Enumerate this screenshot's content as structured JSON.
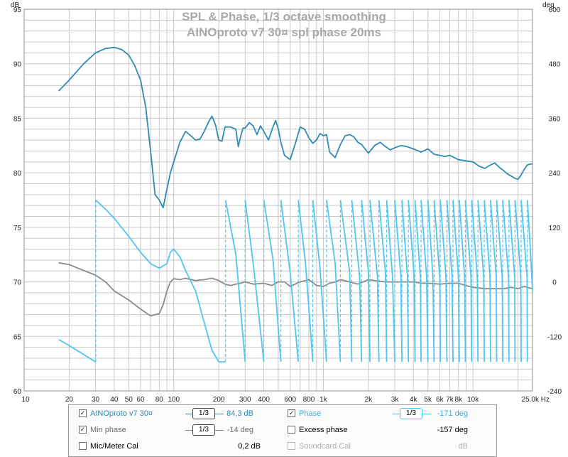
{
  "colors": {
    "spl": "#2f8cb0",
    "phase": "#4ec6f2",
    "min_phase": "#8a8a8a",
    "grid": "#c8c8c8",
    "title": "#a8a8a8",
    "disabled_text": "#b0b0b0"
  },
  "chart_data": {
    "type": "line",
    "title": "SPL & Phase, 1/3 octave smoothing",
    "subtitle": "AINOproto v7 30¤ spl phase 20ms",
    "left_unit": "dB",
    "right_unit": "deg",
    "x_scale": "log",
    "xlim": [
      10,
      25000
    ],
    "ylim_left": [
      60,
      95
    ],
    "ylim_right": [
      -240,
      600
    ],
    "grid": true,
    "x_tick_labels": [
      {
        "v": 10,
        "t": "10"
      },
      {
        "v": 20,
        "t": "20"
      },
      {
        "v": 30,
        "t": "30"
      },
      {
        "v": 40,
        "t": "40"
      },
      {
        "v": 50,
        "t": "50"
      },
      {
        "v": 60,
        "t": "60"
      },
      {
        "v": 80,
        "t": "80"
      },
      {
        "v": 100,
        "t": "100"
      },
      {
        "v": 200,
        "t": "200"
      },
      {
        "v": 300,
        "t": "300"
      },
      {
        "v": 400,
        "t": "400"
      },
      {
        "v": 600,
        "t": "600"
      },
      {
        "v": 800,
        "t": "800"
      },
      {
        "v": 1000,
        "t": "1k"
      },
      {
        "v": 2000,
        "t": "2k"
      },
      {
        "v": 3000,
        "t": "3k"
      },
      {
        "v": 4000,
        "t": "4k"
      },
      {
        "v": 5000,
        "t": "5k"
      },
      {
        "v": 6000,
        "t": "6k"
      },
      {
        "v": 7000,
        "t": "7k"
      },
      {
        "v": 8000,
        "t": "8k"
      },
      {
        "v": 10000,
        "t": "10k"
      },
      {
        "v": 25000,
        "t": "25,0k Hz"
      }
    ],
    "y_left_ticks": [
      "95",
      "90",
      "85",
      "80",
      "75",
      "70",
      "65",
      "60"
    ],
    "y_right_ticks": [
      "600",
      "480",
      "360",
      "240",
      "120",
      "0",
      "-120",
      "-240"
    ],
    "series": [
      {
        "name": "AINOproto v7 30¤",
        "axis": "left",
        "x": [
          17,
          20,
          25,
          30,
          35,
          40,
          45,
          50,
          55,
          60,
          65,
          70,
          75,
          80,
          85,
          90,
          95,
          100,
          110,
          120,
          130,
          140,
          150,
          160,
          170,
          180,
          190,
          200,
          210,
          220,
          240,
          260,
          270,
          280,
          290,
          300,
          320,
          340,
          360,
          380,
          400,
          430,
          460,
          480,
          500,
          520,
          550,
          600,
          650,
          700,
          750,
          800,
          850,
          900,
          950,
          1000,
          1050,
          1100,
          1200,
          1300,
          1400,
          1500,
          1600,
          1700,
          1800,
          2000,
          2200,
          2400,
          2600,
          2800,
          3000,
          3300,
          3600,
          4000,
          4500,
          5000,
          5500,
          6000,
          6500,
          7000,
          8000,
          9000,
          10000,
          11000,
          12000,
          13000,
          14000,
          15000,
          16000,
          17000,
          18000,
          19000,
          20000,
          21000,
          22000,
          23000,
          24000,
          25000
        ],
        "y": [
          87.5,
          88.5,
          90.0,
          91.0,
          91.4,
          91.5,
          91.3,
          90.8,
          89.8,
          88.5,
          86.0,
          82.0,
          78.0,
          77.5,
          76.8,
          78.5,
          80.0,
          81.0,
          82.8,
          83.8,
          83.4,
          83.0,
          83.1,
          83.8,
          84.6,
          85.2,
          84.4,
          83.0,
          82.9,
          84.2,
          84.2,
          84.0,
          82.4,
          83.3,
          84.1,
          84.1,
          84.6,
          84.3,
          83.5,
          84.3,
          83.8,
          83.0,
          84.2,
          84.8,
          84.0,
          82.8,
          81.6,
          81.2,
          82.7,
          84.2,
          84.0,
          83.2,
          82.7,
          83.0,
          83.6,
          83.4,
          83.5,
          81.9,
          81.4,
          82.6,
          83.4,
          83.5,
          83.3,
          82.8,
          82.6,
          81.8,
          82.5,
          82.8,
          82.4,
          82.1,
          82.3,
          82.5,
          82.4,
          82.2,
          81.9,
          82.2,
          81.7,
          81.6,
          81.5,
          81.6,
          81.2,
          81.1,
          81.0,
          80.6,
          80.4,
          80.7,
          80.9,
          80.5,
          80.2,
          79.9,
          79.7,
          79.5,
          79.4,
          79.8,
          80.3,
          80.7,
          80.8,
          80.8
        ]
      },
      {
        "name": "Phase",
        "axis": "right",
        "wrapped": true,
        "x": [
          17,
          20,
          25,
          30,
          30.1,
          35,
          40,
          50,
          60,
          70,
          80,
          90,
          95,
          100,
          110,
          120,
          140,
          160,
          180,
          200,
          221.9,
          222,
          260,
          300,
          300.1,
          340,
          400,
          400.1,
          460,
          520,
          520.1,
          600,
          680,
          680.1,
          760,
          850,
          850.1,
          950,
          1050,
          1050.1,
          1200,
          1300,
          1300.1,
          1500,
          1550,
          1550.1,
          1750,
          1800,
          1800.1,
          2000,
          2050,
          2050.1,
          2300,
          2350,
          2350.1,
          2600,
          2650,
          2650.1,
          2900,
          3000,
          3000.1,
          3300,
          3350,
          3350.1,
          3650,
          3700,
          3700.1,
          4050,
          4100,
          4100.1,
          4450,
          4500,
          4500.1,
          4900,
          5000,
          5000.1,
          5400,
          5500,
          5500.1,
          6000,
          6050,
          6050.1,
          6600,
          6700,
          6700.1,
          7250,
          7350,
          7350.1,
          8000,
          8100,
          8100.1,
          8800,
          8900,
          8900.1,
          9700,
          9800,
          9800.1,
          10700,
          10800,
          10800.1,
          11800,
          11900,
          11900.1,
          13000,
          13100,
          13100.1,
          14300,
          14400,
          14400.1,
          15700,
          15800,
          15800.1,
          17300,
          17400,
          17400.1,
          19000,
          19100,
          19100.1,
          20900,
          21000,
          21000.1,
          23000,
          23100,
          23100.1,
          24300,
          25000
        ],
        "y": [
          -127,
          -140,
          -160,
          -176,
          180,
          160,
          140,
          100,
          65,
          40,
          30,
          40,
          65,
          72,
          55,
          25,
          -20,
          -90,
          -150,
          -176,
          -176,
          180,
          60,
          -176,
          180,
          40,
          -176,
          180,
          50,
          -176,
          180,
          20,
          -176,
          180,
          40,
          -176,
          180,
          30,
          -176,
          180,
          40,
          -176,
          180,
          20,
          -176,
          180,
          10,
          -176,
          180,
          20,
          -176,
          180,
          10,
          -176,
          180,
          20,
          -176,
          180,
          10,
          -176,
          180,
          10,
          -176,
          180,
          10,
          -176,
          180,
          10,
          -176,
          180,
          10,
          -176,
          180,
          10,
          -176,
          180,
          10,
          -176,
          180,
          10,
          -176,
          180,
          10,
          -176,
          180,
          10,
          -176,
          180,
          10,
          -176,
          180,
          10,
          -176,
          180,
          10,
          -176,
          180,
          10,
          -176,
          180,
          10,
          -176,
          180,
          10,
          -176,
          180,
          10,
          -176,
          180,
          10,
          -176,
          180,
          10,
          -176,
          180,
          10,
          -176,
          180,
          10,
          -176,
          180,
          10,
          -176,
          180,
          60,
          -20
        ]
      },
      {
        "name": "Min phase",
        "axis": "right",
        "x": [
          17,
          20,
          25,
          30,
          35,
          40,
          50,
          60,
          70,
          80,
          85,
          90,
          95,
          100,
          110,
          120,
          140,
          160,
          180,
          200,
          220,
          240,
          260,
          280,
          300,
          340,
          400,
          450,
          500,
          550,
          600,
          700,
          800,
          900,
          1000,
          1100,
          1200,
          1300,
          1500,
          1700,
          2000,
          2300,
          2600,
          3000,
          3500,
          4000,
          4500,
          5000,
          6000,
          7000,
          8000,
          9000,
          10000,
          12000,
          14000,
          16000,
          18000,
          20000,
          22000,
          25000
        ],
        "y": [
          42,
          38,
          25,
          15,
          0,
          -20,
          -40,
          -60,
          -75,
          -70,
          -50,
          -20,
          0,
          7,
          5,
          8,
          3,
          5,
          8,
          3,
          -5,
          -8,
          -5,
          -3,
          0,
          -5,
          -3,
          -8,
          0,
          0,
          -10,
          0,
          5,
          -8,
          -10,
          -3,
          0,
          5,
          0,
          -5,
          5,
          2,
          0,
          0,
          0,
          0,
          -3,
          -3,
          -5,
          -3,
          -3,
          -8,
          -12,
          -15,
          -15,
          -15,
          -12,
          -15,
          -10,
          -15
        ]
      }
    ]
  },
  "legend": {
    "rows": [
      {
        "left_checked": true,
        "left_label": "AINOproto v7 30¤",
        "left_smoothing": "1/3",
        "left_value": "84,3 dB",
        "right_checked": true,
        "right_label": "Phase",
        "right_smoothing": "1/3",
        "right_value": "-171 deg"
      },
      {
        "left_checked": true,
        "left_label": "Min phase",
        "left_smoothing": "1/3",
        "left_value": "-14 deg",
        "right_checked": false,
        "right_label": "Excess phase",
        "right_value": "-157 deg"
      },
      {
        "left_checked": false,
        "left_label": "Mic/Meter Cal",
        "left_value": "0,2 dB",
        "right_checked": false,
        "right_label": "Soundcard Cal",
        "right_value": "dB"
      }
    ]
  }
}
